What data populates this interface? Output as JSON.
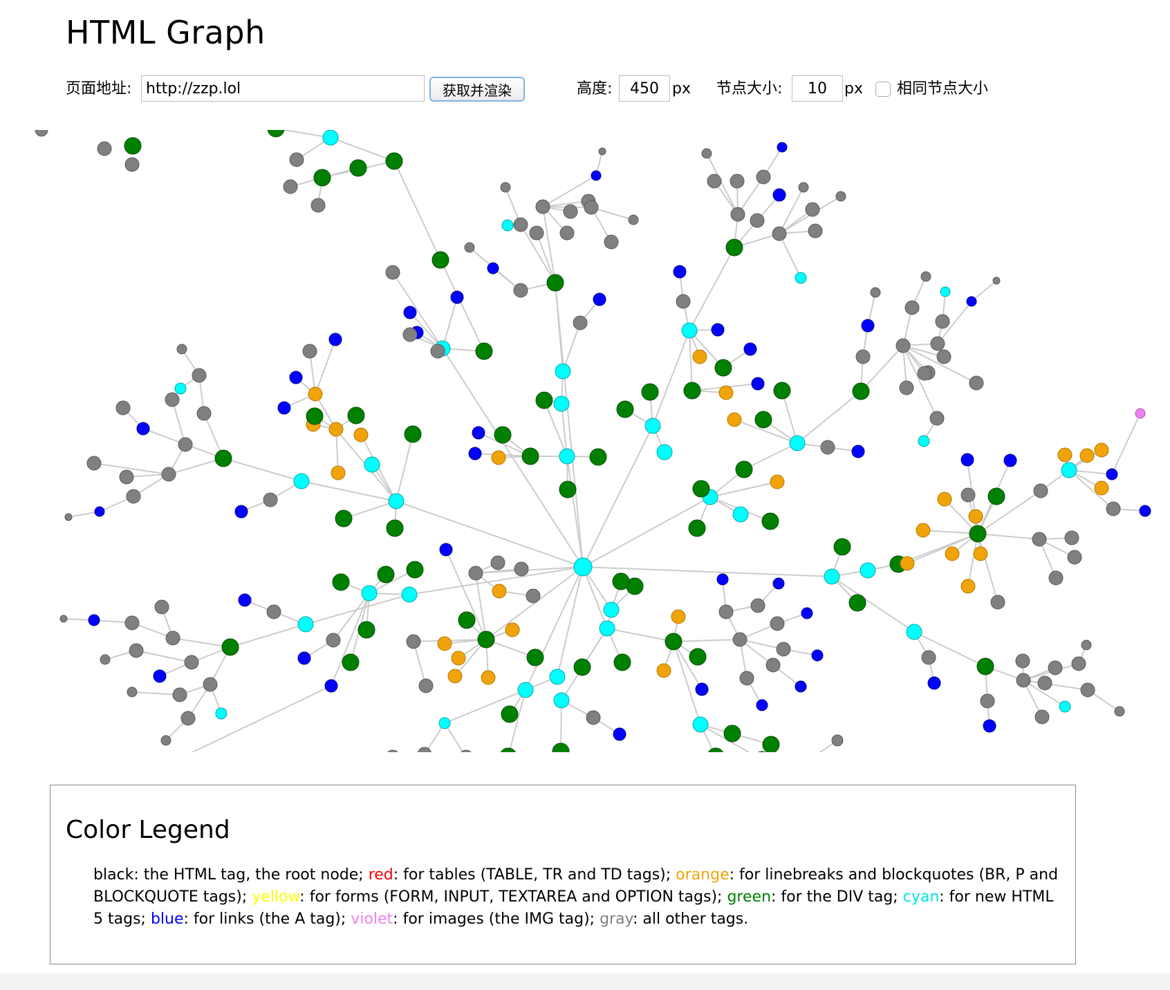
{
  "page": {
    "title": "HTML Graph"
  },
  "controls": {
    "url_label": "页面地址:",
    "url_value": "http://zzp.lol",
    "fetch_button": "获取并渲染",
    "height_label": "高度:",
    "height_value": "450",
    "height_unit": "px",
    "node_size_label": "节点大小:",
    "node_size_value": "10",
    "node_size_unit": "px",
    "same_size_label": "相同节点大小",
    "same_size_checked": false
  },
  "graph": {
    "edge_color": "#cccccc",
    "node_colors": {
      "green": "#008000",
      "cyan": "#00ffff",
      "gray": "#808080",
      "blue": "#0000ff",
      "orange": "#f0a30a",
      "violet": "#ee82ee"
    }
  },
  "legend": {
    "title": "Color Legend",
    "entries": [
      {
        "word": "black",
        "color": "#000000",
        "text": ": the HTML tag, the root node; "
      },
      {
        "word": "red",
        "color": "#ff0000",
        "text": ": for tables (TABLE, TR and TD tags); "
      },
      {
        "word": "orange",
        "color": "#f0a30a",
        "text": ": for linebreaks and blockquotes (BR, P and BLOCKQUOTE tags); "
      },
      {
        "word": "yellow",
        "color": "#ffff00",
        "text": ": for forms (FORM, INPUT, TEXTAREA and OPTION tags); "
      },
      {
        "word": "green",
        "color": "#008000",
        "text": ": for the DIV tag; "
      },
      {
        "word": "cyan",
        "color": "#00e5e5",
        "text": ": for new HTML 5 tags; "
      },
      {
        "word": "blue",
        "color": "#0000ff",
        "text": ": for links (the A tag); "
      },
      {
        "word": "violet",
        "color": "#ee82ee",
        "text": ": for images (the IMG tag); "
      },
      {
        "word": "gray",
        "color": "#808080",
        "text": ": all other tags."
      }
    ]
  }
}
